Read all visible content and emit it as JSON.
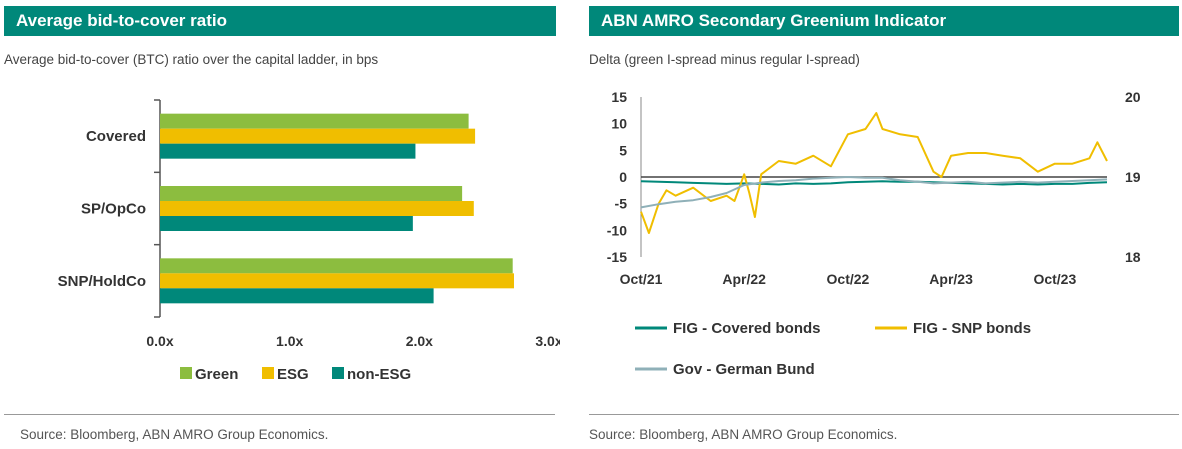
{
  "left": {
    "title": "Average bid-to-cover ratio",
    "subtitle": "Average bid-to-cover (BTC) ratio over the capital ladder, in bps",
    "source": "Source: Bloomberg, ABN AMRO Group Economics."
  },
  "right": {
    "title": "ABN AMRO Secondary Greenium Indicator",
    "subtitle": "Delta (green I-spread minus regular I-spread)",
    "source": "Source: Bloomberg, ABN AMRO Group Economics."
  },
  "chart_data": [
    {
      "type": "bar",
      "orientation": "horizontal",
      "categories": [
        "Covered",
        "SP/OpCo",
        "SNP/HoldCo"
      ],
      "series": [
        {
          "name": "Green",
          "color": "#8cbd3f",
          "values": [
            2.38,
            2.33,
            2.72
          ]
        },
        {
          "name": "ESG",
          "color": "#f0be00",
          "values": [
            2.43,
            2.42,
            2.73
          ]
        },
        {
          "name": "non-ESG",
          "color": "#00887a",
          "values": [
            1.97,
            1.95,
            2.11
          ]
        }
      ],
      "xlim": [
        0,
        3
      ],
      "xticks": [
        "0.0x",
        "1.0x",
        "2.0x",
        "3.0x"
      ],
      "legend": "bottom"
    },
    {
      "type": "line",
      "x_ticks": [
        "Oct/21",
        "Apr/22",
        "Oct/22",
        "Apr/23",
        "Oct/23"
      ],
      "x_range": [
        "2021-10",
        "2024-01"
      ],
      "y_left": {
        "ticks": [
          "15",
          "10",
          "5",
          "0",
          "-5",
          "-10",
          "-15"
        ],
        "range": [
          -15,
          15
        ]
      },
      "y_right": {
        "ticks": [
          "20",
          "19",
          "18"
        ],
        "range": [
          18,
          20
        ]
      },
      "series": [
        {
          "name": "FIG - Covered bonds",
          "color": "#00887a",
          "axis": "left",
          "x": [
            "2021-10",
            "2021-11",
            "2021-12",
            "2022-01",
            "2022-02",
            "2022-03",
            "2022-04",
            "2022-05",
            "2022-06",
            "2022-07",
            "2022-08",
            "2022-09",
            "2022-10",
            "2022-11",
            "2022-12",
            "2023-01",
            "2023-02",
            "2023-03",
            "2023-04",
            "2023-05",
            "2023-06",
            "2023-07",
            "2023-08",
            "2023-09",
            "2023-10",
            "2023-11",
            "2023-12",
            "2024-01"
          ],
          "values": [
            -0.8,
            -0.9,
            -1.0,
            -1.1,
            -1.2,
            -1.3,
            -1.2,
            -1.3,
            -1.4,
            -1.2,
            -1.3,
            -1.2,
            -1.0,
            -0.9,
            -0.8,
            -0.9,
            -0.9,
            -1.0,
            -1.1,
            -1.2,
            -1.3,
            -1.4,
            -1.3,
            -1.4,
            -1.3,
            -1.3,
            -1.1,
            -1.0
          ]
        },
        {
          "name": "FIG - SNP bonds",
          "color": "#f0be00",
          "axis": "left",
          "x": [
            "2021-10",
            "2021-10-15",
            "2021-11",
            "2021-11-15",
            "2021-12",
            "2022-01",
            "2022-02",
            "2022-03",
            "2022-03-15",
            "2022-04",
            "2022-04-10",
            "2022-04-20",
            "2022-05",
            "2022-06",
            "2022-07",
            "2022-08",
            "2022-09",
            "2022-10",
            "2022-11",
            "2022-11-20",
            "2022-12",
            "2023-01",
            "2023-02",
            "2023-03",
            "2023-03-15",
            "2023-04",
            "2023-05",
            "2023-06",
            "2023-07",
            "2023-08",
            "2023-09",
            "2023-10",
            "2023-11",
            "2023-12",
            "2023-12-15",
            "2024-01"
          ],
          "values": [
            -6.5,
            -10.5,
            -5.0,
            -2.5,
            -3.5,
            -2.0,
            -4.5,
            -3.5,
            -4.5,
            0.5,
            -3.0,
            -7.5,
            0.5,
            3.0,
            2.5,
            4.0,
            2.0,
            8.0,
            9.0,
            12.0,
            9.0,
            8.0,
            7.5,
            1.0,
            0.0,
            4.0,
            4.5,
            4.5,
            4.0,
            3.5,
            1.0,
            2.5,
            2.5,
            3.5,
            6.5,
            3.0
          ]
        },
        {
          "name": "Gov - German Bund",
          "color": "#8fb0b8",
          "axis": "right",
          "x": [
            "2021-10",
            "2021-11",
            "2021-12",
            "2022-01",
            "2022-02",
            "2022-03",
            "2022-04",
            "2022-05",
            "2022-06",
            "2022-07",
            "2022-08",
            "2022-09",
            "2022-10",
            "2022-11",
            "2022-12",
            "2023-01",
            "2023-02",
            "2023-03",
            "2023-04",
            "2023-05",
            "2023-06",
            "2023-07",
            "2023-08",
            "2023-09",
            "2023-10",
            "2023-11",
            "2023-12",
            "2024-01"
          ],
          "values": [
            18.62,
            18.66,
            18.69,
            18.71,
            18.75,
            18.8,
            18.9,
            18.93,
            18.95,
            18.96,
            18.98,
            18.99,
            19.0,
            18.99,
            18.99,
            18.96,
            18.94,
            18.92,
            18.93,
            18.94,
            18.92,
            18.93,
            18.94,
            18.93,
            18.94,
            18.95,
            18.96,
            18.97
          ]
        }
      ],
      "legend": "bottom"
    }
  ]
}
